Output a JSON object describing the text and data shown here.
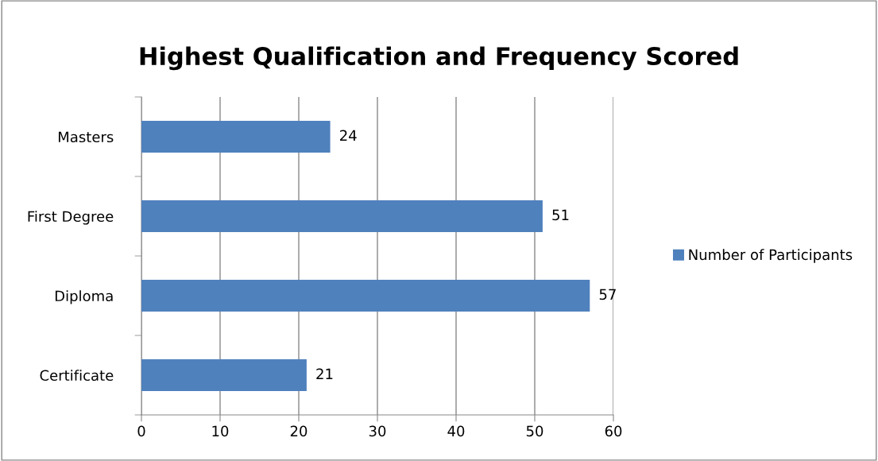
{
  "chart_data": {
    "type": "bar",
    "orientation": "horizontal",
    "title": "Highest Qualification and Frequency Scored",
    "categories": [
      "Masters",
      "First Degree",
      "Diploma",
      "Certificate"
    ],
    "series": [
      {
        "name": "Number of Participants",
        "color": "#4f81bd",
        "values": [
          24,
          51,
          57,
          21
        ]
      }
    ],
    "xlim": [
      0,
      60
    ],
    "xticks": [
      0,
      10,
      20,
      30,
      40,
      50,
      60
    ],
    "grid": "x",
    "legend": "right",
    "data_labels": true
  }
}
